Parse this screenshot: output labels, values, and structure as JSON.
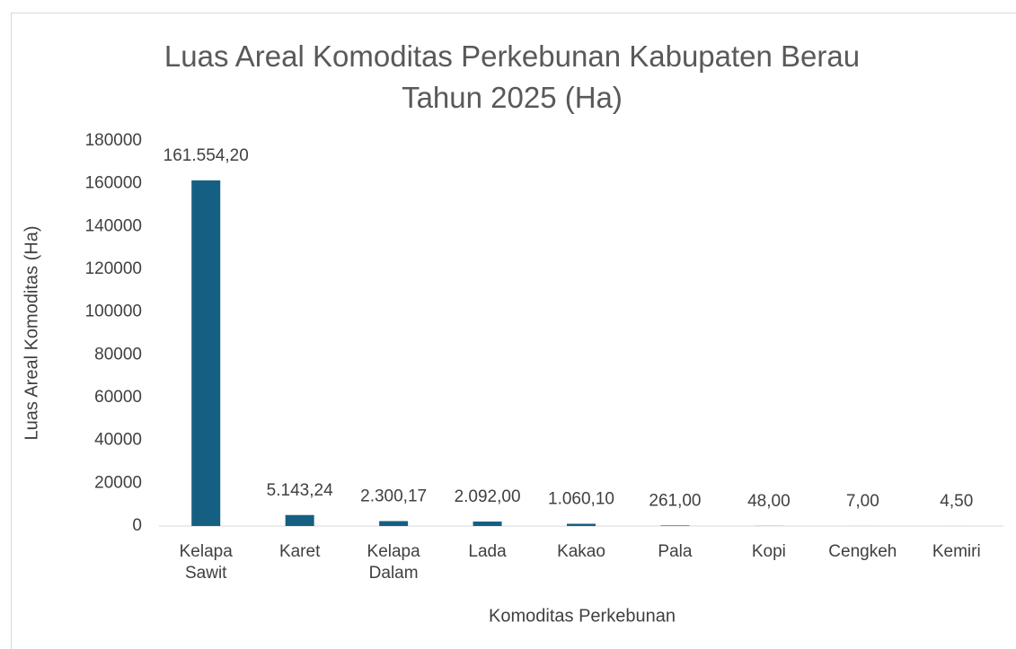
{
  "chart_data": {
    "type": "bar",
    "title": "Luas Areal Komoditas Perkebunan Kabupaten Berau Tahun 2025 (Ha)",
    "x_label": "Komoditas Perkebunan",
    "y_label": "Luas Areal Komoditas (Ha)",
    "categories": [
      "Kelapa Sawit",
      "Karet",
      "Kelapa Dalam",
      "Lada",
      "Kakao",
      "Pala",
      "Kopi",
      "Cengkeh",
      "Kemiri"
    ],
    "values": [
      161554.2,
      5143.24,
      2300.17,
      2092,
      1060.1,
      261,
      48,
      7,
      4.5
    ],
    "value_labels": [
      "161.554,20",
      "5.143,24",
      "2.300,17",
      "2.092,00",
      "1.060,10",
      "261,00",
      "48,00",
      "7,00",
      "4,50"
    ],
    "color": "#156082",
    "ylim": [
      0,
      180000
    ],
    "yticks": [
      0,
      20000,
      40000,
      60000,
      80000,
      100000,
      120000,
      140000,
      160000,
      180000
    ],
    "grid": false
  }
}
